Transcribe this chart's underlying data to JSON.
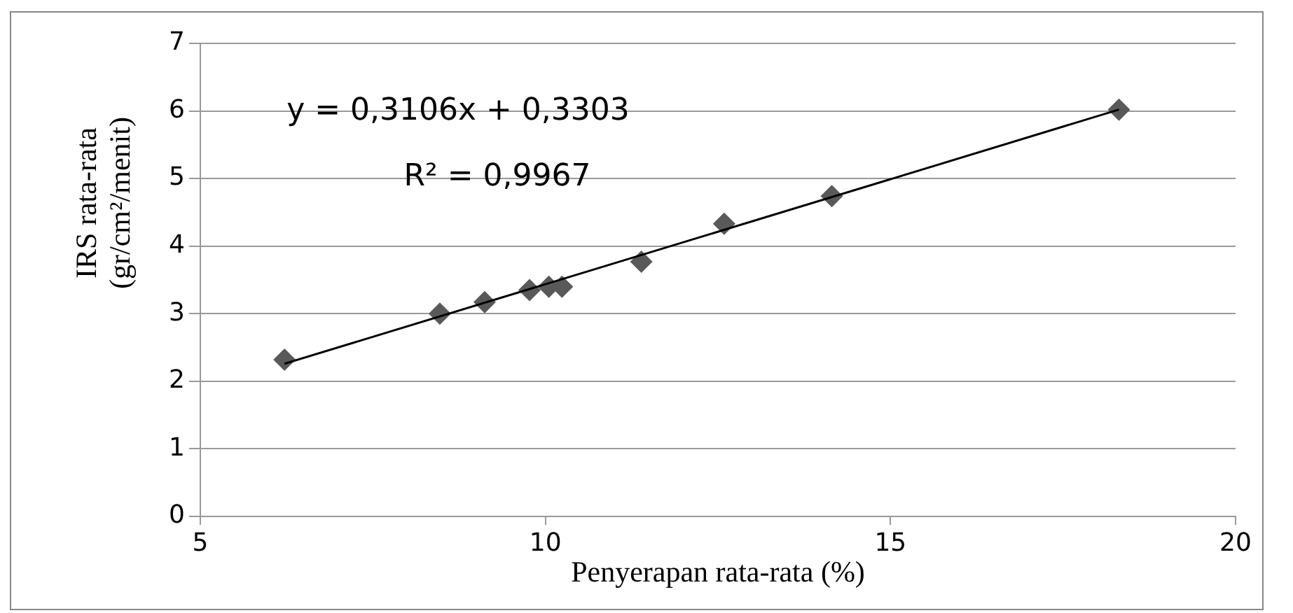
{
  "chart_data": {
    "type": "scatter",
    "xlabel": "Penyerapan rata-rata (%)",
    "ylabel": "IRS rata-rata\n(gr/cm²/menit)",
    "annotations": [
      "y = 0,3106x + 0,3303",
      "R² = 0,9967"
    ],
    "xlim": [
      5,
      20
    ],
    "xticks": [
      5,
      10,
      15,
      20
    ],
    "ylim": [
      0,
      7
    ],
    "yticks": [
      0,
      1,
      2,
      3,
      4,
      5,
      6,
      7
    ],
    "grid": "y",
    "legend": false,
    "marker": "diamond",
    "series": [
      {
        "type": "scatter",
        "color": "#595959",
        "x": [
          6.22,
          8.47,
          9.12,
          9.77,
          10.05,
          10.24,
          11.39,
          12.59,
          14.15,
          18.31
        ],
        "values": [
          2.32,
          3.0,
          3.17,
          3.35,
          3.4,
          3.4,
          3.77,
          4.33,
          4.74,
          6.02
        ]
      },
      {
        "type": "line",
        "color": "#000000",
        "x": [
          6.22,
          18.31
        ],
        "values": [
          2.26,
          6.02
        ],
        "marker": "none",
        "line_style": "solid"
      }
    ]
  }
}
